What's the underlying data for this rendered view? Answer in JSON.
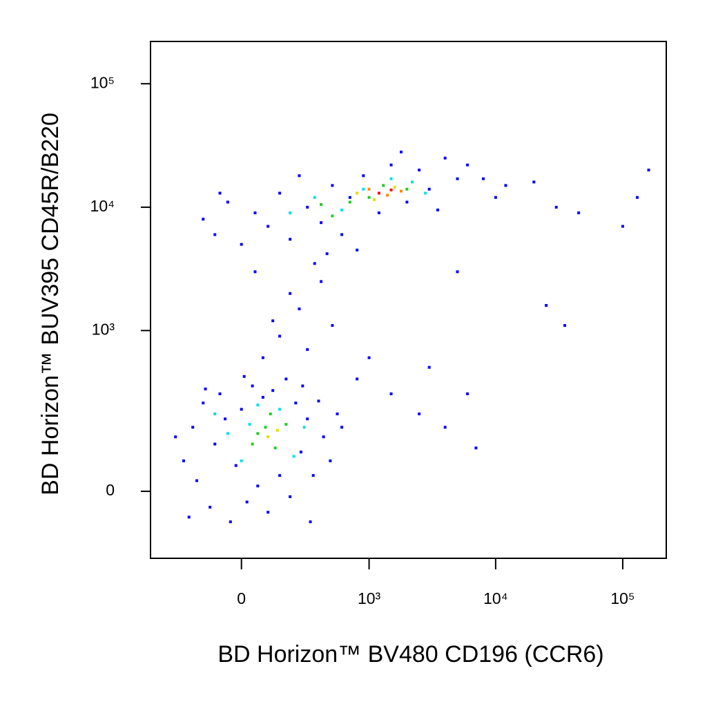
{
  "chart_data": {
    "type": "scatter",
    "x_label": "BD Horizon™ BV480 CD196 (CCR6)",
    "y_label": "BD Horizon™ BUV395 CD45R/B220",
    "scale": "biexponential",
    "xlim": [
      -500,
      220000
    ],
    "ylim": [
      -160,
      220000
    ],
    "xticks": [
      0,
      {
        "value": 1000,
        "label": "10³"
      },
      {
        "value": 10000,
        "label": "10⁴"
      },
      {
        "value": 100000,
        "label": "10⁵"
      }
    ],
    "yticks": [
      0,
      {
        "value": 1000,
        "label": "10³"
      },
      {
        "value": 10000,
        "label": "10⁴"
      },
      {
        "value": 100000,
        "label": "10⁵"
      }
    ],
    "series": [
      {
        "color": "#0000ff",
        "x": [
          -250,
          -200,
          -180,
          -150,
          -120,
          -100,
          -80,
          -60,
          -40,
          -20,
          0,
          20,
          40,
          60,
          80,
          100,
          120,
          150,
          180,
          200,
          230,
          260,
          300,
          340,
          380,
          420,
          480,
          550,
          600,
          -300,
          -220,
          10,
          320,
          270,
          -140,
          80,
          150,
          250,
          400,
          120,
          300,
          200,
          500,
          50,
          350,
          1000,
          1500,
          2500,
          4000,
          6000,
          7000,
          3000,
          800,
          12000,
          20000,
          30000,
          45000,
          100000,
          130000,
          160000,
          25000,
          35000,
          5000,
          8000,
          10000,
          -150,
          -100,
          -50,
          0,
          50,
          100,
          150,
          200,
          300,
          400,
          500,
          600,
          700,
          900,
          1200,
          1500,
          2000,
          2500,
          3000,
          4000,
          5000,
          6000,
          3500,
          800,
          250,
          1800,
          -80,
          450
        ],
        "y": [
          60,
          150,
          20,
          250,
          -30,
          100,
          300,
          180,
          -60,
          50,
          220,
          -20,
          350,
          10,
          280,
          -40,
          320,
          30,
          400,
          -10,
          250,
          80,
          180,
          30,
          260,
          120,
          60,
          200,
          150,
          120,
          -50,
          420,
          -60,
          350,
          330,
          600,
          900,
          1500,
          2500,
          1200,
          700,
          2000,
          1100,
          3000,
          3500,
          600,
          300,
          200,
          150,
          300,
          90,
          500,
          400,
          15000,
          16000,
          10000,
          9000,
          7000,
          12000,
          20000,
          1600,
          1100,
          3000,
          17000,
          12000,
          8000,
          6000,
          11000,
          5000,
          9000,
          7000,
          13000,
          5500,
          10000,
          7500,
          15000,
          6000,
          12000,
          18000,
          9000,
          22000,
          11000,
          20000,
          14000,
          25000,
          17000,
          22000,
          9500,
          4500,
          18000,
          28000,
          13000,
          4200
        ]
      },
      {
        "color": "#00e0e0",
        "x": [
          -50,
          0,
          60,
          150,
          220,
          280,
          -100,
          30,
          200,
          350,
          600,
          900,
          1500,
          2200,
          2800
        ],
        "y": [
          130,
          60,
          240,
          220,
          70,
          150,
          200,
          160,
          9000,
          12000,
          9500,
          14000,
          17000,
          16000,
          13000
        ]
      },
      {
        "color": "#22cc22",
        "x": [
          40,
          90,
          130,
          180,
          110,
          60,
          400,
          700,
          1000,
          1300,
          2000,
          500
        ],
        "y": [
          100,
          150,
          90,
          160,
          200,
          130,
          10500,
          11000,
          12000,
          15000,
          14000,
          8500
        ]
      },
      {
        "color": "#e0e000",
        "x": [
          100,
          140,
          800,
          1100,
          1600
        ],
        "y": [
          120,
          140,
          13000,
          11500,
          14500
        ]
      },
      {
        "color": "#ff8800",
        "x": [
          1000,
          1400,
          1800
        ],
        "y": [
          14000,
          12500,
          13500
        ]
      },
      {
        "color": "#ff0000",
        "x": [
          1200,
          1500
        ],
        "y": [
          13000,
          13800
        ]
      }
    ]
  }
}
